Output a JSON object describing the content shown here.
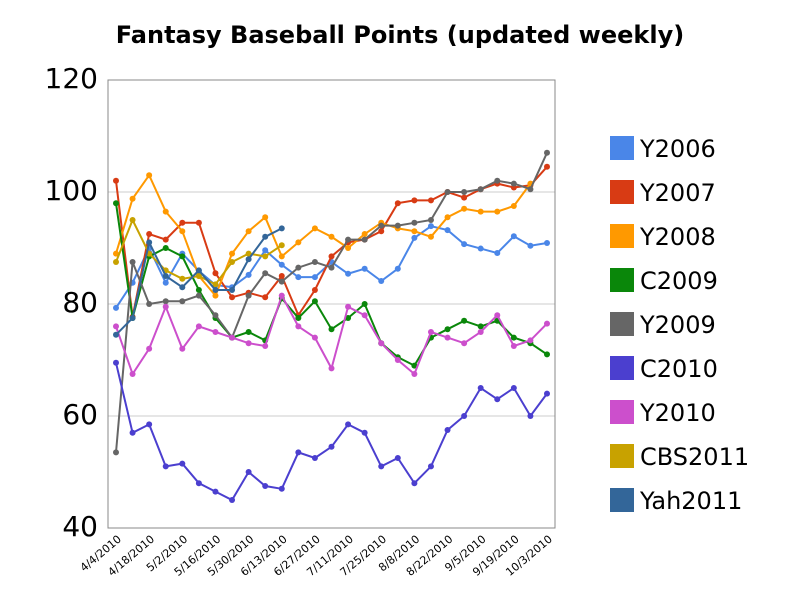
{
  "chart_data": {
    "type": "line",
    "title": "Fantasy Baseball Points (updated weekly)",
    "categories": [
      "4/4/2010",
      null,
      "4/18/2010",
      null,
      "5/2/2010",
      null,
      "5/16/2010",
      null,
      "5/30/2010",
      null,
      "6/13/2010",
      null,
      "6/27/2010",
      null,
      "7/11/2010",
      null,
      "7/25/2010",
      null,
      "8/8/2010",
      null,
      "8/22/2010",
      null,
      "9/5/2010",
      null,
      "9/19/2010",
      null,
      "10/3/2010"
    ],
    "ylim": [
      40,
      120
    ],
    "yticks": [
      40,
      60,
      80,
      100,
      120
    ],
    "grid": true,
    "legend": "right",
    "series": [
      {
        "name": "Y2006",
        "color": "#4a86e8",
        "values": [
          79.3,
          83.8,
          90,
          83.8,
          89,
          85.9,
          83.4,
          83,
          85.2,
          89.6,
          87,
          84.8,
          84.8,
          87.5,
          85.4,
          86.3,
          84.1,
          86.3,
          91.8,
          93.9,
          93.2,
          90.7,
          89.9,
          89.1,
          92.1,
          90.4,
          90.9
        ]
      },
      {
        "name": "Y2007",
        "color": "#d83b14",
        "values": [
          102,
          77.7,
          92.5,
          91.5,
          94.5,
          94.5,
          85.5,
          81.2,
          82,
          81.2,
          85,
          78,
          82.5,
          88.5,
          91,
          91.5,
          93,
          98,
          98.5,
          98.5,
          100,
          99,
          100.5,
          101.5,
          100.8,
          101.2,
          104.5
        ]
      },
      {
        "name": "Y2008",
        "color": "#ff9900",
        "values": [
          89,
          98.8,
          103,
          96.5,
          93,
          85,
          81.5,
          89,
          93,
          95.5,
          88.5,
          91,
          93.5,
          92,
          90,
          92.5,
          94.5,
          93.5,
          93,
          92,
          95.5,
          97,
          96.5,
          96.5,
          97.5,
          101.5,
          null
        ]
      },
      {
        "name": "C2009",
        "color": "#0a870a",
        "values": [
          98,
          77.5,
          88.5,
          90,
          88.5,
          82.5,
          77.5,
          74,
          75,
          73.5,
          81,
          77.5,
          80.5,
          75.5,
          77.5,
          80,
          73,
          70.5,
          69,
          74,
          75.5,
          77,
          76,
          77,
          74,
          73,
          71
        ]
      },
      {
        "name": "Y2009",
        "color": "#666666",
        "values": [
          53.5,
          87.5,
          80,
          80.5,
          80.5,
          81.5,
          78,
          74,
          81.5,
          85.5,
          84,
          86.5,
          87.5,
          86.5,
          91.5,
          91.5,
          94,
          94,
          94.5,
          95,
          100,
          100,
          100.5,
          102,
          101.5,
          100.5,
          107
        ]
      },
      {
        "name": "C2010",
        "color": "#4b3fcf",
        "values": [
          69.5,
          57,
          58.5,
          51,
          51.5,
          48,
          46.5,
          45,
          50,
          47.5,
          47,
          53.5,
          52.5,
          54.5,
          58.5,
          57,
          51,
          52.5,
          48,
          51,
          57.5,
          60,
          65,
          63,
          65,
          60,
          64
        ]
      },
      {
        "name": "Y2010",
        "color": "#cc4fcc",
        "values": [
          76,
          67.5,
          72,
          79.5,
          72,
          76,
          75,
          74,
          73,
          72.5,
          81.5,
          76,
          74,
          68.5,
          79.5,
          78,
          73,
          70,
          67.5,
          75,
          74,
          73,
          75,
          78,
          72.5,
          73.5,
          76.5
        ]
      },
      {
        "name": "CBS2011",
        "color": "#c8a200",
        "values": [
          87.5,
          95,
          89,
          86,
          84.5,
          85,
          83.5,
          87.5,
          89,
          88.5,
          90.5,
          null,
          null,
          null,
          null,
          null,
          null,
          null,
          null,
          null,
          null,
          null,
          null,
          null,
          null,
          null,
          null
        ]
      },
      {
        "name": "Yah2011",
        "color": "#336699",
        "values": [
          74.5,
          77.5,
          91,
          85,
          83,
          86,
          82.5,
          82.5,
          88,
          92,
          93.5,
          null,
          null,
          null,
          null,
          null,
          null,
          null,
          null,
          null,
          null,
          null,
          null,
          null,
          null,
          null,
          null
        ]
      }
    ]
  }
}
